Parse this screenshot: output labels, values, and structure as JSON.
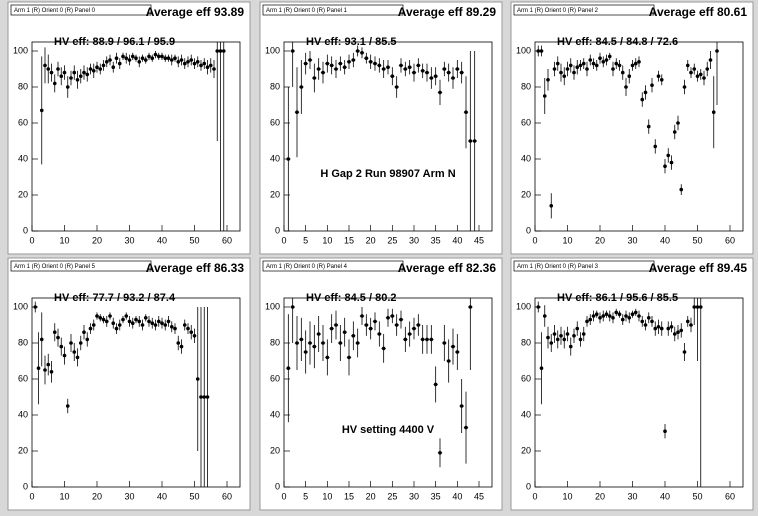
{
  "chart_data": [
    {
      "type": "scatter",
      "title": "Arm 1 (R) Orient 0 (R) Panel 0",
      "subtitle": "Average eff 93.89",
      "annotation": "HV eff:   88.9 / 96.1 / 95.9",
      "x": [
        3,
        4,
        5,
        6,
        7,
        8,
        9,
        10,
        11,
        12,
        13,
        14,
        15,
        16,
        17,
        18,
        19,
        20,
        21,
        22,
        23,
        24,
        25,
        26,
        27,
        28,
        29,
        30,
        31,
        32,
        33,
        34,
        35,
        36,
        37,
        38,
        39,
        40,
        41,
        42,
        43,
        44,
        45,
        46,
        47,
        48,
        49,
        50,
        51,
        52,
        53,
        54,
        55,
        56,
        57,
        58,
        59
      ],
      "values": [
        67,
        92,
        90,
        88,
        82,
        90,
        86,
        88,
        80,
        85,
        88,
        84,
        86,
        88,
        87,
        90,
        89,
        91,
        90,
        92,
        94,
        95,
        91,
        96,
        93,
        97,
        96,
        95,
        97,
        96,
        94,
        96,
        95,
        97,
        96,
        98,
        97,
        97,
        96,
        96,
        95,
        96,
        94,
        95,
        93,
        94,
        95,
        93,
        94,
        92,
        93,
        91,
        92,
        90,
        100,
        100,
        100
      ],
      "errors": [
        30,
        10,
        8,
        5,
        5,
        4,
        5,
        4,
        6,
        4,
        4,
        5,
        4,
        4,
        4,
        3,
        4,
        3,
        3,
        3,
        3,
        3,
        3,
        3,
        3,
        2,
        3,
        3,
        2,
        2,
        3,
        2,
        2,
        2,
        2,
        2,
        2,
        2,
        2,
        2,
        3,
        2,
        3,
        3,
        3,
        3,
        3,
        3,
        3,
        3,
        3,
        4,
        4,
        5,
        50,
        100,
        100
      ],
      "xlim": [
        0,
        64
      ],
      "ylim": [
        0,
        105
      ],
      "xticks": [
        0,
        10,
        20,
        30,
        40,
        50,
        60
      ],
      "yticks": [
        0,
        20,
        40,
        60,
        80,
        100
      ]
    },
    {
      "type": "scatter",
      "title": "Arm 1 (R) Orient 0 (R) Panel 1",
      "subtitle": "Average eff 89.29",
      "annotation": "HV eff:   93.1 / 85.5",
      "note": "H Gap 2 Run 98907 Arm N",
      "x": [
        1,
        2,
        3,
        4,
        5,
        6,
        7,
        8,
        9,
        10,
        11,
        12,
        13,
        14,
        15,
        16,
        17,
        18,
        19,
        20,
        21,
        22,
        23,
        24,
        25,
        26,
        27,
        28,
        29,
        30,
        31,
        32,
        33,
        34,
        35,
        36,
        37,
        38,
        39,
        40,
        41,
        42,
        43,
        44
      ],
      "values": [
        40,
        100,
        66,
        80,
        93,
        95,
        85,
        90,
        88,
        93,
        92,
        90,
        93,
        91,
        94,
        95,
        100,
        99,
        96,
        94,
        93,
        92,
        90,
        91,
        86,
        80,
        92,
        90,
        91,
        88,
        92,
        89,
        88,
        85,
        86,
        77,
        90,
        88,
        85,
        90,
        88,
        66,
        50,
        50
      ],
      "errors": [
        40,
        20,
        25,
        15,
        6,
        5,
        8,
        6,
        6,
        5,
        5,
        5,
        4,
        4,
        4,
        4,
        3,
        3,
        3,
        4,
        4,
        4,
        5,
        4,
        5,
        6,
        4,
        4,
        4,
        5,
        4,
        4,
        5,
        6,
        5,
        7,
        4,
        5,
        6,
        5,
        6,
        20,
        50,
        50
      ],
      "xlim": [
        0,
        48
      ],
      "ylim": [
        0,
        105
      ],
      "xticks": [
        0,
        5,
        10,
        15,
        20,
        25,
        30,
        35,
        40,
        45
      ],
      "yticks": [
        0,
        20,
        40,
        60,
        80,
        100
      ]
    },
    {
      "type": "scatter",
      "title": "Arm 1 (R) Orient 0 (R) Panel 2",
      "subtitle": "Average eff 80.61",
      "annotation": "HV eff:   84.5 / 84.8 / 72.6",
      "x": [
        1,
        2,
        3,
        4,
        5,
        6,
        7,
        8,
        9,
        10,
        11,
        12,
        13,
        14,
        15,
        16,
        17,
        18,
        19,
        20,
        21,
        22,
        23,
        24,
        25,
        26,
        27,
        28,
        29,
        30,
        31,
        32,
        33,
        34,
        35,
        36,
        37,
        38,
        39,
        40,
        41,
        42,
        43,
        44,
        45,
        46,
        47,
        48,
        49,
        50,
        51,
        52,
        53,
        54,
        55,
        56
      ],
      "values": [
        100,
        100,
        75,
        84,
        14,
        90,
        93,
        88,
        86,
        90,
        92,
        88,
        91,
        92,
        93,
        90,
        95,
        93,
        92,
        96,
        94,
        95,
        97,
        90,
        93,
        92,
        88,
        80,
        86,
        92,
        93,
        94,
        73,
        77,
        58,
        81,
        47,
        86,
        84,
        36,
        42,
        38,
        55,
        60,
        23,
        80,
        92,
        88,
        90,
        86,
        87,
        85,
        90,
        95,
        66,
        100
      ],
      "errors": [
        3,
        3,
        10,
        6,
        7,
        4,
        4,
        5,
        5,
        4,
        4,
        4,
        4,
        3,
        3,
        4,
        3,
        3,
        3,
        3,
        3,
        3,
        2,
        4,
        3,
        3,
        4,
        5,
        4,
        3,
        3,
        3,
        4,
        4,
        4,
        4,
        4,
        3,
        3,
        4,
        4,
        4,
        4,
        4,
        3,
        4,
        3,
        3,
        3,
        3,
        3,
        4,
        4,
        5,
        20,
        30
      ],
      "xlim": [
        0,
        64
      ],
      "ylim": [
        0,
        105
      ],
      "xticks": [
        0,
        10,
        20,
        30,
        40,
        50,
        60
      ],
      "yticks": [
        0,
        20,
        40,
        60,
        80,
        100
      ]
    },
    {
      "type": "scatter",
      "title": "Arm 1 (R) Orient 0 (R) Panel 5",
      "subtitle": "Average eff 86.33",
      "annotation": "HV eff:   77.7 / 93.2 / 87.4",
      "x": [
        1,
        2,
        3,
        4,
        5,
        6,
        7,
        8,
        9,
        10,
        11,
        12,
        13,
        14,
        15,
        16,
        17,
        18,
        19,
        20,
        21,
        22,
        23,
        24,
        25,
        26,
        27,
        28,
        29,
        30,
        31,
        32,
        33,
        34,
        35,
        36,
        37,
        38,
        39,
        40,
        41,
        42,
        43,
        44,
        45,
        46,
        47,
        48,
        49,
        50,
        51,
        52,
        53,
        54
      ],
      "values": [
        100,
        66,
        82,
        65,
        68,
        64,
        86,
        83,
        78,
        73,
        45,
        80,
        75,
        72,
        80,
        86,
        82,
        88,
        90,
        95,
        94,
        93,
        92,
        95,
        91,
        88,
        90,
        93,
        95,
        92,
        91,
        93,
        92,
        90,
        94,
        92,
        91,
        90,
        92,
        91,
        90,
        92,
        89,
        88,
        80,
        78,
        90,
        88,
        86,
        84,
        60,
        50,
        50,
        50
      ],
      "errors": [
        3,
        20,
        15,
        8,
        6,
        6,
        5,
        5,
        5,
        5,
        4,
        5,
        5,
        5,
        4,
        4,
        4,
        3,
        3,
        2,
        2,
        2,
        3,
        2,
        3,
        3,
        3,
        2,
        2,
        3,
        3,
        2,
        3,
        3,
        2,
        3,
        3,
        3,
        3,
        3,
        3,
        3,
        3,
        3,
        4,
        4,
        3,
        3,
        4,
        4,
        40,
        50,
        50,
        50
      ],
      "xlim": [
        0,
        64
      ],
      "ylim": [
        0,
        105
      ],
      "xticks": [
        0,
        10,
        20,
        30,
        40,
        50,
        60
      ],
      "yticks": [
        0,
        20,
        40,
        60,
        80,
        100
      ]
    },
    {
      "type": "scatter",
      "title": "Arm 1 (R) Orient 0 (R) Panel 4",
      "subtitle": "Average eff 82.36",
      "annotation": "HV eff:   84.5 / 80.2",
      "note": "HV setting 4400 V",
      "x": [
        1,
        2,
        3,
        4,
        5,
        6,
        7,
        8,
        9,
        10,
        11,
        12,
        13,
        14,
        15,
        16,
        17,
        18,
        19,
        20,
        21,
        22,
        23,
        24,
        25,
        26,
        27,
        28,
        29,
        30,
        31,
        32,
        33,
        34,
        35,
        36,
        37,
        38,
        39,
        40,
        41,
        42,
        43
      ],
      "values": [
        66,
        100,
        80,
        82,
        75,
        80,
        78,
        85,
        80,
        72,
        88,
        90,
        80,
        86,
        72,
        84,
        80,
        95,
        90,
        88,
        92,
        85,
        77,
        94,
        95,
        90,
        93,
        82,
        85,
        88,
        90,
        82,
        82,
        82,
        57,
        19,
        80,
        70,
        78,
        75,
        45,
        33,
        100
      ],
      "errors": [
        30,
        20,
        15,
        12,
        12,
        12,
        12,
        10,
        10,
        10,
        8,
        8,
        10,
        8,
        10,
        8,
        8,
        5,
        6,
        6,
        5,
        7,
        8,
        5,
        4,
        6,
        5,
        7,
        7,
        6,
        6,
        8,
        8,
        8,
        10,
        8,
        10,
        12,
        10,
        10,
        15,
        20,
        35
      ],
      "xlim": [
        0,
        48
      ],
      "ylim": [
        0,
        105
      ],
      "xticks": [
        0,
        5,
        10,
        15,
        20,
        25,
        30,
        35,
        40,
        45
      ],
      "yticks": [
        0,
        20,
        40,
        60,
        80,
        100
      ]
    },
    {
      "type": "scatter",
      "title": "Arm 1 (R) Orient 0 (R) Panel 3",
      "subtitle": "Average eff 89.45",
      "annotation": "HV eff:   86.1 / 95.6 / 85.5",
      "x": [
        1,
        2,
        3,
        4,
        5,
        6,
        7,
        8,
        9,
        10,
        11,
        12,
        13,
        14,
        15,
        16,
        17,
        18,
        19,
        20,
        21,
        22,
        23,
        24,
        25,
        26,
        27,
        28,
        29,
        30,
        31,
        32,
        33,
        34,
        35,
        36,
        37,
        38,
        39,
        40,
        41,
        42,
        43,
        44,
        45,
        46,
        47,
        48,
        49,
        50,
        51
      ],
      "values": [
        100,
        66,
        95,
        83,
        80,
        85,
        82,
        84,
        82,
        85,
        78,
        84,
        88,
        82,
        85,
        92,
        93,
        95,
        96,
        94,
        95,
        96,
        95,
        94,
        97,
        96,
        93,
        95,
        94,
        96,
        97,
        95,
        92,
        90,
        94,
        92,
        88,
        89,
        88,
        31,
        88,
        89,
        85,
        86,
        87,
        75,
        92,
        90,
        100,
        100,
        100
      ],
      "errors": [
        3,
        20,
        6,
        6,
        5,
        5,
        5,
        5,
        5,
        4,
        5,
        4,
        4,
        4,
        4,
        3,
        3,
        3,
        2,
        3,
        3,
        2,
        3,
        3,
        2,
        2,
        3,
        3,
        3,
        2,
        2,
        3,
        3,
        3,
        3,
        3,
        4,
        4,
        4,
        4,
        4,
        3,
        4,
        4,
        4,
        5,
        3,
        4,
        10,
        30,
        100
      ],
      "xlim": [
        0,
        64
      ],
      "ylim": [
        0,
        105
      ],
      "xticks": [
        0,
        10,
        20,
        30,
        40,
        50,
        60
      ],
      "yticks": [
        0,
        20,
        40,
        60,
        80,
        100
      ]
    }
  ]
}
